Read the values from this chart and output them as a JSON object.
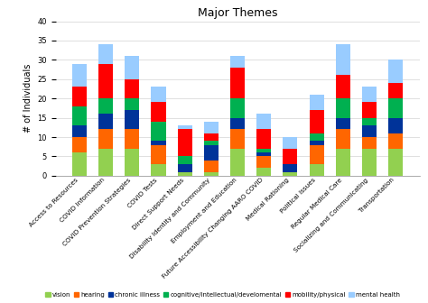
{
  "title": "Major Themes",
  "ylabel": "# of Individuals",
  "categories": [
    "Access to Resources",
    "COVID Information",
    "COVID Prevention Strategies",
    "COVID Tests",
    "Direct Support Needs",
    "Disability Identity and Community",
    "Employment and Education",
    "Future Accessibility Changing AARO COVID",
    "Medical Rationing",
    "Political Issues",
    "Regular Medical Care",
    "Socializing and Communicating",
    "Transportation"
  ],
  "series": {
    "vision": [
      6,
      7,
      7,
      3,
      1,
      1,
      7,
      2,
      1,
      3,
      7,
      7,
      7
    ],
    "hearing": [
      4,
      5,
      5,
      5,
      0,
      3,
      5,
      3,
      0,
      5,
      5,
      3,
      4
    ],
    "chronic illness": [
      3,
      4,
      5,
      1,
      2,
      4,
      3,
      1,
      2,
      1,
      3,
      3,
      4
    ],
    "cognitive/intellectual/develomental": [
      5,
      4,
      3,
      5,
      2,
      1,
      5,
      1,
      0,
      2,
      5,
      2,
      5
    ],
    "mobility/physical": [
      5,
      9,
      5,
      5,
      7,
      2,
      8,
      5,
      4,
      6,
      6,
      4,
      4
    ],
    "mental health": [
      6,
      5,
      6,
      4,
      1,
      3,
      3,
      4,
      3,
      4,
      8,
      4,
      6
    ]
  },
  "colors": {
    "vision": "#92D050",
    "hearing": "#FF6600",
    "chronic illness": "#003399",
    "cognitive/intellectual/develomental": "#00B050",
    "mobility/physical": "#FF0000",
    "mental health": "#99CCFF"
  },
  "ylim": [
    0,
    40
  ],
  "yticks": [
    0,
    5,
    10,
    15,
    20,
    25,
    30,
    35,
    40
  ],
  "figsize": [
    4.74,
    3.36
  ],
  "dpi": 100
}
